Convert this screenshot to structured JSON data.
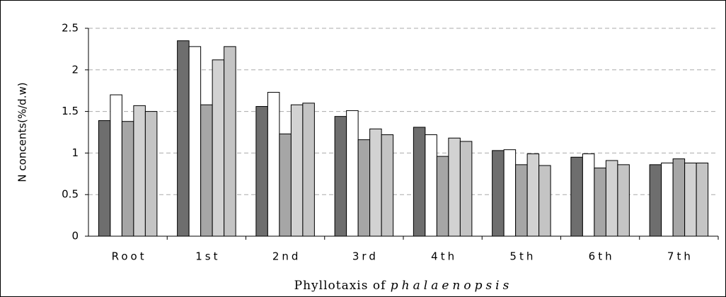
{
  "chart_data": {
    "type": "bar",
    "y_label": "N concents(%/d.w)",
    "x_label": {
      "text": "Phyllotaxis of",
      "italic": "phalaenopsis"
    },
    "categories": [
      "Root",
      "1st",
      "2nd",
      "3rd",
      "4th",
      "5th",
      "6th",
      "7th"
    ],
    "series": [
      {
        "color": "#6e6e6e",
        "values": [
          1.39,
          2.35,
          1.56,
          1.44,
          1.31,
          1.03,
          0.95,
          0.86
        ]
      },
      {
        "color": "#ffffff",
        "values": [
          1.7,
          2.28,
          1.73,
          1.51,
          1.22,
          1.04,
          0.99,
          0.88
        ]
      },
      {
        "color": "#a6a6a6",
        "values": [
          1.38,
          1.58,
          1.23,
          1.16,
          0.96,
          0.86,
          0.82,
          0.93
        ]
      },
      {
        "color": "#d2d2d2",
        "values": [
          1.57,
          2.12,
          1.58,
          1.29,
          1.18,
          0.99,
          0.91,
          0.88
        ]
      },
      {
        "color": "#c4c4c4",
        "values": [
          1.5,
          2.28,
          1.6,
          1.22,
          1.14,
          0.85,
          0.86,
          0.88
        ]
      }
    ],
    "ylim": [
      0,
      2.5
    ],
    "yticks": [
      0,
      0.5,
      1,
      1.5,
      2,
      2.5
    ],
    "grid": true
  }
}
